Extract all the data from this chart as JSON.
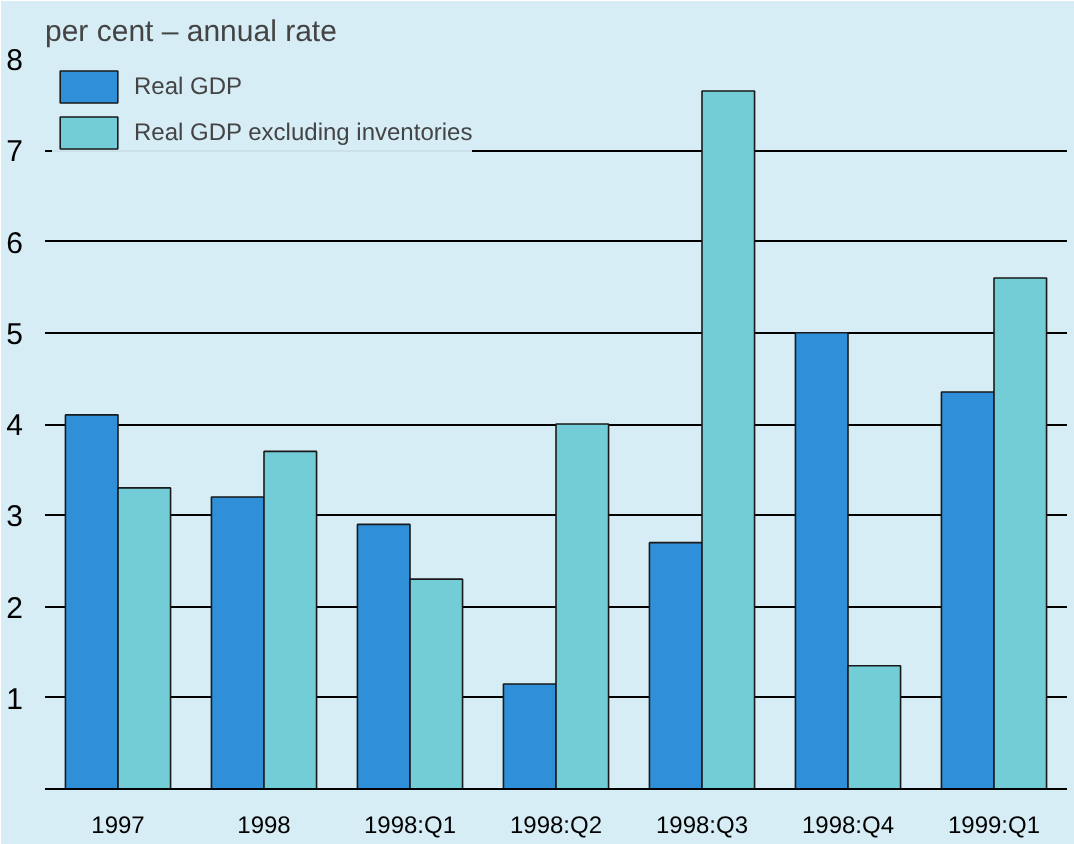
{
  "chart_data": {
    "type": "bar",
    "title": "per cent – annual rate",
    "categories": [
      "1997",
      "1998",
      "1998:Q1",
      "1998:Q2",
      "1998:Q3",
      "1998:Q4",
      "1999:Q1"
    ],
    "series": [
      {
        "name": "Real GDP",
        "color": "#2f8fd8",
        "values": [
          4.1,
          3.2,
          2.9,
          1.15,
          2.7,
          5.0,
          4.35
        ]
      },
      {
        "name": "Real GDP excluding inventories",
        "color": "#72cdd6",
        "values": [
          3.3,
          3.7,
          2.3,
          4.0,
          7.65,
          1.35,
          5.6
        ]
      }
    ],
    "ylim": [
      0,
      8
    ],
    "yticks": [
      1,
      2,
      3,
      4,
      5,
      6,
      7,
      8
    ],
    "grid": "y",
    "legend": "top left"
  }
}
